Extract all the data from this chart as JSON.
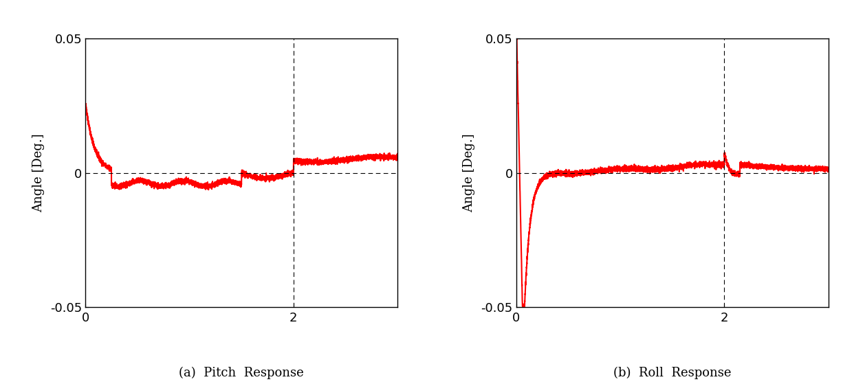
{
  "fig_width": 12.42,
  "fig_height": 5.59,
  "dpi": 100,
  "background_color": "#ffffff",
  "subplot_labels": [
    "(a)  Pitch  Response",
    "(b)  Roll  Response"
  ],
  "ylabel": "Angle [Deg.]",
  "ylim": [
    -0.05,
    0.05
  ],
  "xlim": [
    0,
    3
  ],
  "yticks": [
    -0.05,
    0,
    0.05
  ],
  "xticks": [
    0,
    2
  ],
  "vline_x": 2,
  "hline_y": 0,
  "line_color": "#ff0000",
  "line_width": 1.5,
  "caption_color": "#000000",
  "caption_fontsize": 13,
  "axis_fontsize": 13,
  "tick_fontsize": 13
}
